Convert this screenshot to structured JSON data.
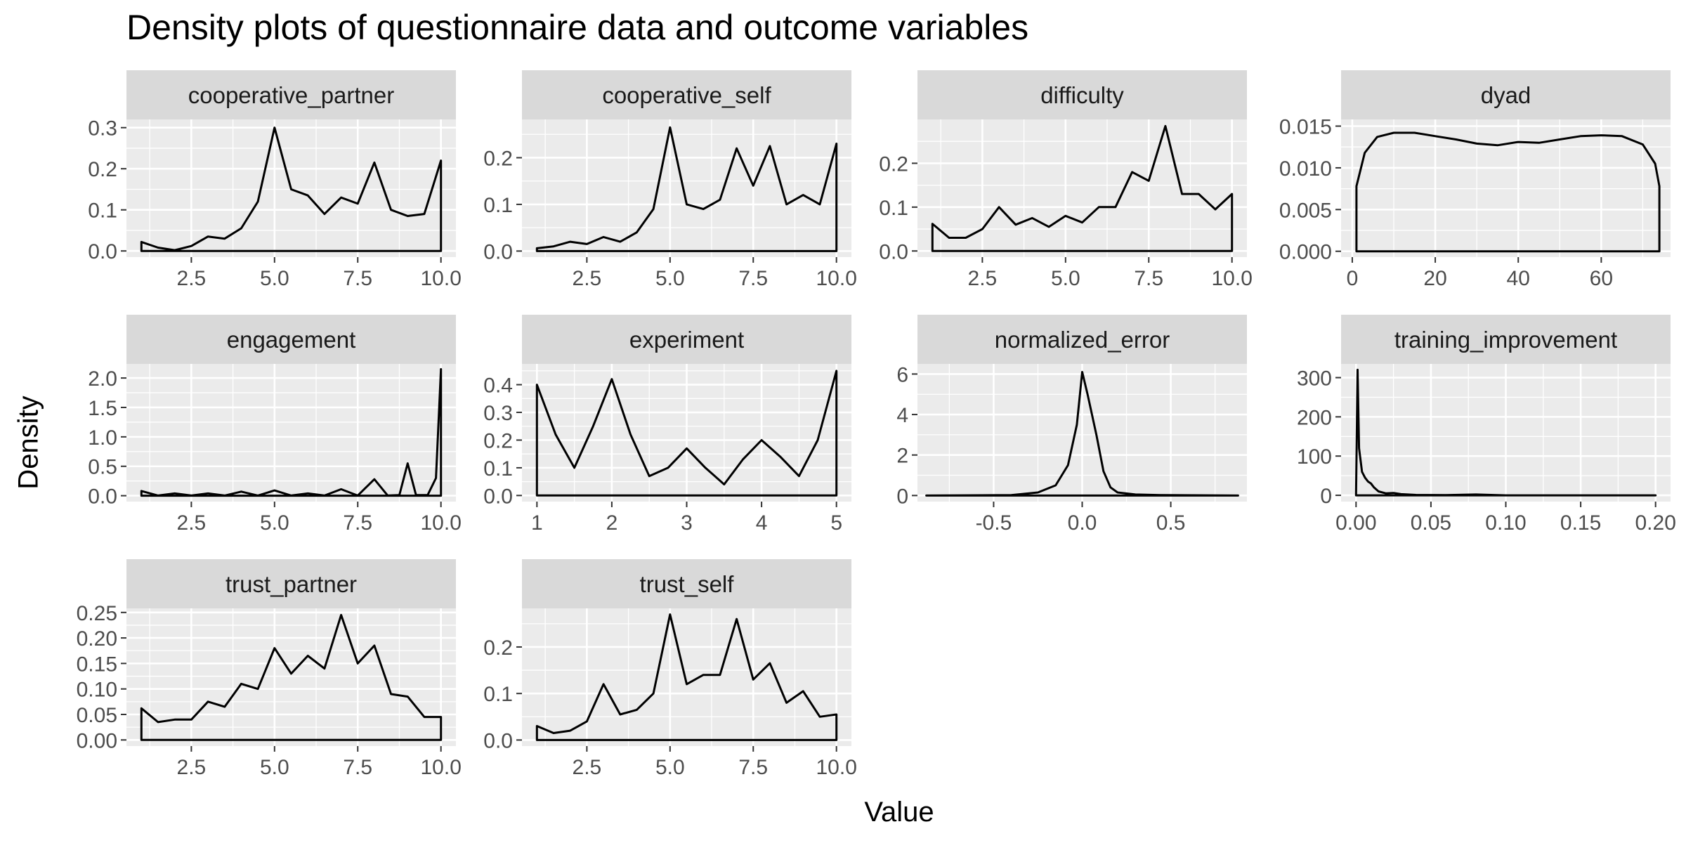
{
  "chart_data": {
    "type": "density-facets",
    "title": "Density plots of questionnaire data and outcome variables",
    "xlabel": "Value",
    "ylabel": "Density",
    "colors": {
      "strip": "#d9d9d9",
      "panel": "#ebebeb",
      "grid": "#ffffff",
      "line": "#000000",
      "tick_text": "#4d4d4d"
    },
    "panels": [
      {
        "name": "cooperative_partner",
        "xlim": [
          0.55,
          10.45
        ],
        "ylim": [
          -0.015,
          0.32
        ],
        "xticks": [
          2.5,
          5,
          7.5,
          10
        ],
        "xtick_labels": [
          "2.5",
          "5.0",
          "7.5",
          "10.0"
        ],
        "yticks": [
          0,
          0.1,
          0.2,
          0.3
        ],
        "ytick_labels": [
          "0.0",
          "0.1",
          "0.2",
          "0.3"
        ],
        "x": [
          1,
          1.5,
          2,
          2.5,
          3,
          3.5,
          4,
          4.5,
          5,
          5.5,
          6,
          6.5,
          7,
          7.5,
          8,
          8.5,
          9,
          9.5,
          10
        ],
        "y": [
          0.022,
          0.008,
          0.002,
          0.012,
          0.035,
          0.03,
          0.055,
          0.12,
          0.3,
          0.15,
          0.135,
          0.09,
          0.13,
          0.115,
          0.215,
          0.1,
          0.085,
          0.09,
          0.22
        ]
      },
      {
        "name": "cooperative_self",
        "xlim": [
          0.55,
          10.45
        ],
        "ylim": [
          -0.013,
          0.282
        ],
        "xticks": [
          2.5,
          5,
          7.5,
          10
        ],
        "xtick_labels": [
          "2.5",
          "5.0",
          "7.5",
          "10.0"
        ],
        "yticks": [
          0,
          0.1,
          0.2
        ],
        "ytick_labels": [
          "0.0",
          "0.1",
          "0.2"
        ],
        "x": [
          1,
          1.5,
          2,
          2.5,
          3,
          3.5,
          4,
          4.5,
          5,
          5.5,
          6,
          6.5,
          7,
          7.5,
          8,
          8.5,
          9,
          9.5,
          10
        ],
        "y": [
          0.006,
          0.01,
          0.02,
          0.015,
          0.03,
          0.02,
          0.04,
          0.09,
          0.265,
          0.1,
          0.09,
          0.11,
          0.22,
          0.14,
          0.225,
          0.1,
          0.12,
          0.1,
          0.23
        ]
      },
      {
        "name": "difficulty",
        "xlim": [
          0.55,
          10.45
        ],
        "ylim": [
          -0.014,
          0.3
        ],
        "xticks": [
          2.5,
          5,
          7.5,
          10
        ],
        "xtick_labels": [
          "2.5",
          "5.0",
          "7.5",
          "10.0"
        ],
        "yticks": [
          0,
          0.1,
          0.2
        ],
        "ytick_labels": [
          "0.0",
          "0.1",
          "0.2"
        ],
        "x": [
          1,
          1.5,
          2,
          2.5,
          3,
          3.5,
          4,
          4.5,
          5,
          5.5,
          6,
          6.5,
          7,
          7.5,
          8,
          8.5,
          9,
          9.5,
          10
        ],
        "y": [
          0.062,
          0.03,
          0.03,
          0.05,
          0.1,
          0.06,
          0.075,
          0.055,
          0.08,
          0.065,
          0.1,
          0.1,
          0.18,
          0.16,
          0.285,
          0.13,
          0.13,
          0.095,
          0.13
        ]
      },
      {
        "name": "dyad",
        "xlim": [
          -2.7,
          76.7
        ],
        "ylim": [
          -0.0007,
          0.0158
        ],
        "xticks": [
          0,
          20,
          40,
          60
        ],
        "xtick_labels": [
          "0",
          "20",
          "40",
          "60"
        ],
        "yticks": [
          0,
          0.005,
          0.01,
          0.015
        ],
        "ytick_labels": [
          "0.000",
          "0.005",
          "0.010",
          "0.015"
        ],
        "x": [
          1,
          3,
          6,
          10,
          15,
          20,
          25,
          30,
          35,
          40,
          45,
          50,
          55,
          60,
          65,
          70,
          73,
          74
        ],
        "y": [
          0.0078,
          0.0118,
          0.0137,
          0.0142,
          0.0142,
          0.0138,
          0.0134,
          0.0129,
          0.0127,
          0.0131,
          0.013,
          0.0134,
          0.0138,
          0.0139,
          0.0138,
          0.0128,
          0.0105,
          0.0078
        ]
      },
      {
        "name": "engagement",
        "xlim": [
          0.55,
          10.45
        ],
        "ylim": [
          -0.1,
          2.24
        ],
        "xticks": [
          2.5,
          5,
          7.5,
          10
        ],
        "xtick_labels": [
          "2.5",
          "5.0",
          "7.5",
          "10.0"
        ],
        "yticks": [
          0,
          0.5,
          1,
          1.5,
          2
        ],
        "ytick_labels": [
          "0.0",
          "0.5",
          "1.0",
          "1.5",
          "2.0"
        ],
        "x": [
          1,
          1.5,
          2,
          2.5,
          3,
          3.5,
          4,
          4.5,
          5,
          5.5,
          6,
          6.5,
          7,
          7.5,
          8,
          8.4,
          8.75,
          9,
          9.25,
          9.6,
          9.85,
          10
        ],
        "y": [
          0.08,
          0.003,
          0.04,
          0.003,
          0.04,
          0.003,
          0.07,
          0.003,
          0.09,
          0.003,
          0.04,
          0.003,
          0.11,
          0.003,
          0.28,
          0.003,
          0.01,
          0.55,
          0.01,
          0.01,
          0.3,
          2.15
        ]
      },
      {
        "name": "experiment",
        "xlim": [
          0.8,
          5.2
        ],
        "ylim": [
          -0.022,
          0.475
        ],
        "xticks": [
          1,
          2,
          3,
          4,
          5
        ],
        "xtick_labels": [
          "1",
          "2",
          "3",
          "4",
          "5"
        ],
        "yticks": [
          0,
          0.1,
          0.2,
          0.3,
          0.4
        ],
        "ytick_labels": [
          "0.0",
          "0.1",
          "0.2",
          "0.3",
          "0.4"
        ],
        "x": [
          1,
          1.25,
          1.5,
          1.75,
          2,
          2.25,
          2.5,
          2.75,
          3,
          3.25,
          3.5,
          3.75,
          4,
          4.25,
          4.5,
          4.75,
          5
        ],
        "y": [
          0.4,
          0.22,
          0.1,
          0.25,
          0.42,
          0.22,
          0.07,
          0.1,
          0.17,
          0.1,
          0.04,
          0.13,
          0.2,
          0.14,
          0.07,
          0.2,
          0.45
        ]
      },
      {
        "name": "normalized_error",
        "xlim": [
          -0.93,
          0.93
        ],
        "ylim": [
          -0.3,
          6.5
        ],
        "xticks": [
          -0.5,
          0,
          0.5
        ],
        "xtick_labels": [
          "-0.5",
          "0.0",
          "0.5"
        ],
        "yticks": [
          0,
          2,
          4,
          6
        ],
        "ytick_labels": [
          "0",
          "2",
          "4",
          "6"
        ],
        "x": [
          -0.88,
          -0.4,
          -0.25,
          -0.15,
          -0.08,
          -0.03,
          0,
          0.03,
          0.08,
          0.12,
          0.16,
          0.2,
          0.3,
          0.45,
          0.88
        ],
        "y": [
          0,
          0.02,
          0.15,
          0.5,
          1.5,
          3.5,
          6.1,
          5.0,
          3.0,
          1.2,
          0.4,
          0.15,
          0.05,
          0.02,
          0
        ]
      },
      {
        "name": "training_improvement",
        "xlim": [
          -0.01,
          0.21
        ],
        "ylim": [
          -16,
          335
        ],
        "xticks": [
          0,
          0.05,
          0.1,
          0.15,
          0.2
        ],
        "xtick_labels": [
          "0.00",
          "0.05",
          "0.10",
          "0.15",
          "0.20"
        ],
        "yticks": [
          0,
          100,
          200,
          300
        ],
        "ytick_labels": [
          "0",
          "100",
          "200",
          "300"
        ],
        "x": [
          0,
          0.001,
          0.002,
          0.004,
          0.006,
          0.008,
          0.01,
          0.012,
          0.015,
          0.02,
          0.025,
          0.03,
          0.04,
          0.06,
          0.08,
          0.1,
          0.2
        ],
        "y": [
          0,
          320,
          120,
          60,
          45,
          35,
          30,
          20,
          10,
          5,
          6,
          3,
          1,
          0.5,
          2,
          0,
          0
        ]
      },
      {
        "name": "trust_partner",
        "xlim": [
          0.55,
          10.45
        ],
        "ylim": [
          -0.012,
          0.258
        ],
        "xticks": [
          2.5,
          5,
          7.5,
          10
        ],
        "xtick_labels": [
          "2.5",
          "5.0",
          "7.5",
          "10.0"
        ],
        "yticks": [
          0,
          0.05,
          0.1,
          0.15,
          0.2,
          0.25
        ],
        "ytick_labels": [
          "0.00",
          "0.05",
          "0.10",
          "0.15",
          "0.20",
          "0.25"
        ],
        "x": [
          1,
          1.5,
          2,
          2.5,
          3,
          3.5,
          4,
          4.5,
          5,
          5.5,
          6,
          6.5,
          7,
          7.5,
          8,
          8.5,
          9,
          9.5,
          10
        ],
        "y": [
          0.062,
          0.035,
          0.04,
          0.04,
          0.075,
          0.065,
          0.11,
          0.1,
          0.18,
          0.13,
          0.165,
          0.14,
          0.245,
          0.15,
          0.185,
          0.09,
          0.085,
          0.045,
          0.045
        ]
      },
      {
        "name": "trust_self",
        "xlim": [
          0.55,
          10.45
        ],
        "ylim": [
          -0.013,
          0.283
        ],
        "xticks": [
          2.5,
          5,
          7.5,
          10
        ],
        "xtick_labels": [
          "2.5",
          "5.0",
          "7.5",
          "10.0"
        ],
        "yticks": [
          0,
          0.1,
          0.2
        ],
        "ytick_labels": [
          "0.0",
          "0.1",
          "0.2"
        ],
        "x": [
          1,
          1.5,
          2,
          2.5,
          3,
          3.5,
          4,
          4.5,
          5,
          5.5,
          6,
          6.5,
          7,
          7.5,
          8,
          8.5,
          9,
          9.5,
          10
        ],
        "y": [
          0.03,
          0.015,
          0.02,
          0.04,
          0.12,
          0.055,
          0.065,
          0.1,
          0.27,
          0.12,
          0.14,
          0.14,
          0.26,
          0.13,
          0.165,
          0.08,
          0.105,
          0.05,
          0.055
        ]
      }
    ]
  }
}
